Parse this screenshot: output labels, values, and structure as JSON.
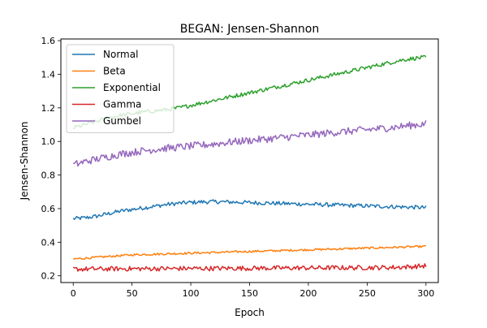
{
  "chart_data": {
    "type": "line",
    "title": "BEGAN: Jensen-Shannon",
    "xlabel": "Epoch",
    "ylabel": "Jensen-Shannon",
    "xlim": [
      -10.5,
      310.5
    ],
    "ylim": [
      0.16,
      1.61
    ],
    "xticks": [
      0,
      50,
      100,
      150,
      200,
      250,
      300
    ],
    "yticks": [
      0.2,
      0.4,
      0.6,
      0.8,
      1.0,
      1.2,
      1.4,
      1.6
    ],
    "ytick_labels": [
      "0.2",
      "0.4",
      "0.6",
      "0.8",
      "1.0",
      "1.2",
      "1.4",
      "1.6"
    ],
    "grid": false,
    "legend_position": "top-left",
    "x": [
      0,
      10,
      20,
      30,
      40,
      50,
      60,
      70,
      80,
      90,
      100,
      110,
      120,
      130,
      140,
      150,
      160,
      170,
      180,
      190,
      200,
      210,
      220,
      230,
      240,
      250,
      260,
      270,
      280,
      290,
      300
    ],
    "series": [
      {
        "name": "Normal",
        "color": "#1f77b4",
        "noise": 0.012,
        "values": [
          0.54,
          0.545,
          0.555,
          0.57,
          0.585,
          0.595,
          0.605,
          0.615,
          0.625,
          0.632,
          0.637,
          0.64,
          0.641,
          0.64,
          0.638,
          0.636,
          0.634,
          0.632,
          0.63,
          0.628,
          0.626,
          0.624,
          0.622,
          0.62,
          0.618,
          0.616,
          0.614,
          0.612,
          0.61,
          0.608,
          0.606
        ]
      },
      {
        "name": "Beta",
        "color": "#ff7f0e",
        "noise": 0.006,
        "values": [
          0.3,
          0.305,
          0.31,
          0.315,
          0.32,
          0.325,
          0.327,
          0.329,
          0.331,
          0.333,
          0.335,
          0.337,
          0.339,
          0.341,
          0.343,
          0.345,
          0.347,
          0.349,
          0.351,
          0.353,
          0.355,
          0.357,
          0.359,
          0.361,
          0.363,
          0.365,
          0.367,
          0.369,
          0.371,
          0.373,
          0.375
        ]
      },
      {
        "name": "Exponential",
        "color": "#2ca02c",
        "noise": 0.012,
        "values": [
          1.08,
          1.1,
          1.12,
          1.14,
          1.155,
          1.165,
          1.175,
          1.182,
          1.19,
          1.2,
          1.215,
          1.23,
          1.245,
          1.26,
          1.275,
          1.29,
          1.305,
          1.32,
          1.335,
          1.35,
          1.365,
          1.38,
          1.395,
          1.41,
          1.425,
          1.44,
          1.455,
          1.47,
          1.485,
          1.495,
          1.5
        ]
      },
      {
        "name": "Gamma",
        "color": "#d62728",
        "noise": 0.014,
        "values": [
          0.24,
          0.24,
          0.241,
          0.241,
          0.242,
          0.242,
          0.242,
          0.243,
          0.243,
          0.243,
          0.244,
          0.244,
          0.244,
          0.245,
          0.245,
          0.245,
          0.246,
          0.246,
          0.246,
          0.247,
          0.247,
          0.247,
          0.248,
          0.248,
          0.248,
          0.249,
          0.249,
          0.25,
          0.252,
          0.255,
          0.26
        ]
      },
      {
        "name": "Gumbel",
        "color": "#9467bd",
        "noise": 0.022,
        "values": [
          0.86,
          0.88,
          0.895,
          0.91,
          0.925,
          0.935,
          0.945,
          0.953,
          0.96,
          0.966,
          0.972,
          0.978,
          0.985,
          0.993,
          1.0,
          1.006,
          1.012,
          1.018,
          1.025,
          1.032,
          1.038,
          1.045,
          1.052,
          1.058,
          1.064,
          1.07,
          1.076,
          1.082,
          1.09,
          1.098,
          1.105
        ]
      }
    ]
  }
}
